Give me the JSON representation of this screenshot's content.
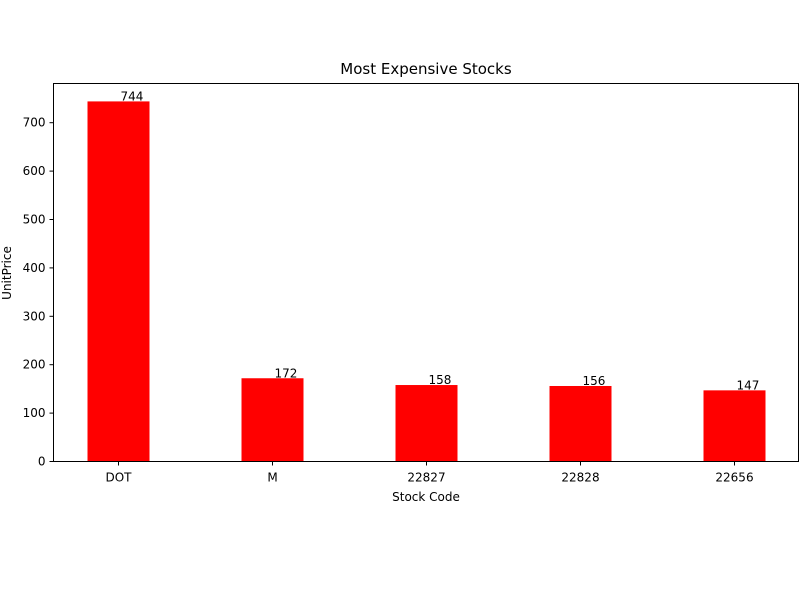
{
  "chart_data": {
    "type": "bar",
    "title": "Most Expensive Stocks",
    "xlabel": "Stock Code",
    "ylabel": "UnitPrice",
    "categories": [
      "DOT",
      "M",
      "22827",
      "22828",
      "22656"
    ],
    "values": [
      744,
      172,
      158,
      156,
      147
    ],
    "data_labels": [
      "744",
      "172",
      "158",
      "156",
      "147"
    ],
    "yticks": [
      0,
      100,
      200,
      300,
      400,
      500,
      600,
      700
    ],
    "ylim": [
      0,
      781
    ],
    "bar_color": "#ff0000",
    "grid": false
  }
}
